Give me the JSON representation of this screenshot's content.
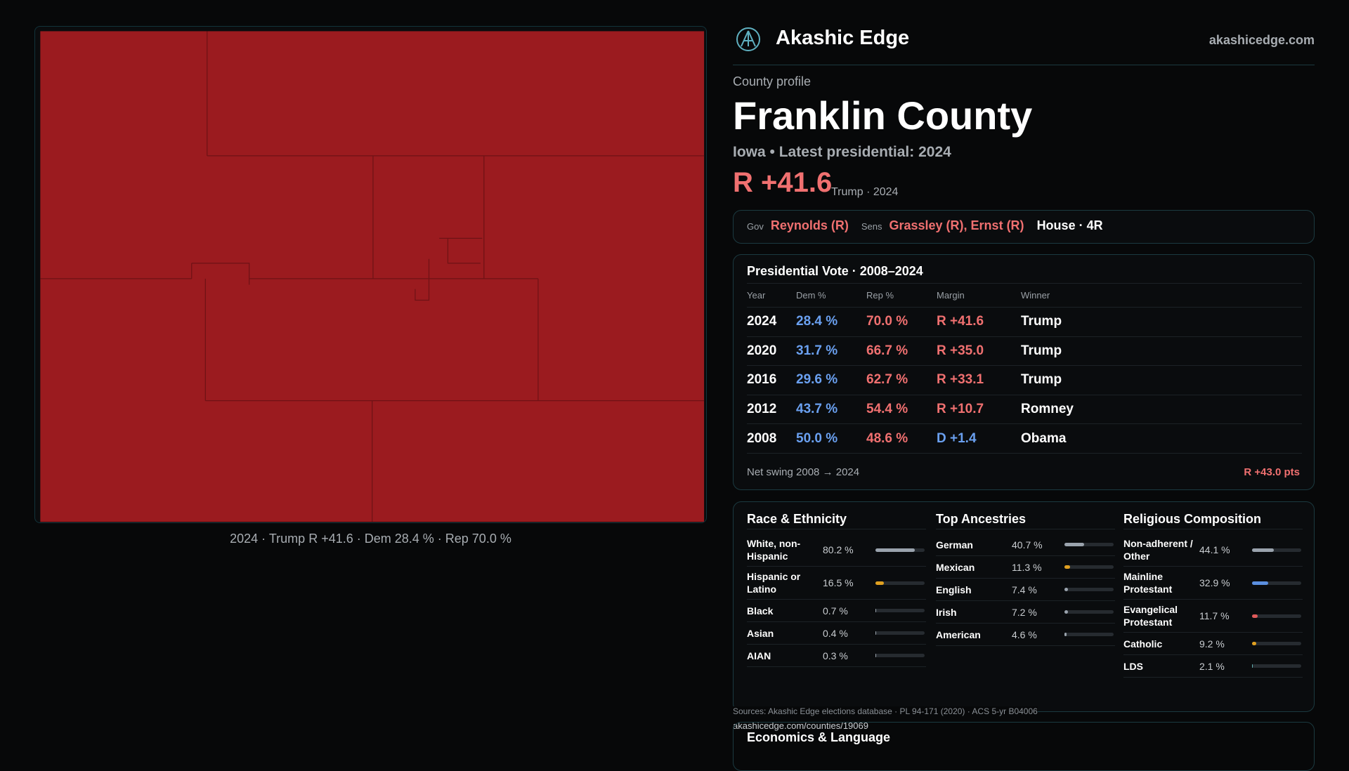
{
  "header": {
    "brand": "Akashic Edge",
    "site": "akashicedge.com"
  },
  "profile": {
    "kicker": "County profile",
    "title": "Franklin County",
    "subtitle": "Iowa • Latest presidential: 2024",
    "margin": "R +41.6",
    "margin_note": "Trump · 2024"
  },
  "officials": [
    {
      "role": "Gov",
      "names": "Reynolds (R)"
    },
    {
      "role": "Sens",
      "names": "Grassley (R), Ernst (R)"
    },
    {
      "role": "",
      "names": "House · 4R"
    }
  ],
  "map": {
    "caption": "2024 · Trump R +41.6 · Dem 28.4 % · Rep 70.0 %"
  },
  "presidential": {
    "title": "Presidential Vote · 2008–2024",
    "columns": [
      "Year",
      "Dem %",
      "Rep %",
      "Margin",
      "Winner"
    ],
    "rows": [
      [
        "2024",
        "28.4 %",
        "70.0 %",
        "R +41.6",
        "Trump"
      ],
      [
        "2020",
        "31.7 %",
        "66.7 %",
        "R +35.0",
        "Trump"
      ],
      [
        "2016",
        "29.6 %",
        "62.7 %",
        "R +33.1",
        "Trump"
      ],
      [
        "2012",
        "43.7 %",
        "54.4 %",
        "R +10.7",
        "Romney"
      ],
      [
        "2008",
        "50.0 %",
        "48.6 %",
        "D +1.4",
        "Obama"
      ]
    ],
    "swing_label": "Net swing 2008 → 2024",
    "swing_value": "R +43.0 pts"
  },
  "panels": [
    {
      "title": "Race & Ethnicity",
      "items": [
        {
          "name": "White, non-Hispanic",
          "value": 80.2,
          "label": "80.2 %",
          "color": "#9aa3ad"
        },
        {
          "name": "Hispanic or Latino",
          "value": 16.5,
          "label": "16.5 %",
          "color": "#e0a020"
        },
        {
          "name": "Black",
          "value": 0.7,
          "label": "0.7 %",
          "color": "#9aa3ad"
        },
        {
          "name": "Asian",
          "value": 0.4,
          "label": "0.4 %",
          "color": "#9aa3ad"
        },
        {
          "name": "AIAN",
          "value": 0.3,
          "label": "0.3 %",
          "color": "#9aa3ad"
        }
      ]
    },
    {
      "title": "Top Ancestries",
      "items": [
        {
          "name": "German",
          "value": 40.7,
          "label": "40.7 %",
          "color": "#9aa3ad"
        },
        {
          "name": "Mexican",
          "value": 11.3,
          "label": "11.3 %",
          "color": "#e0a020"
        },
        {
          "name": "English",
          "value": 7.4,
          "label": "7.4 %",
          "color": "#9aa3ad"
        },
        {
          "name": "Irish",
          "value": 7.2,
          "label": "7.2 %",
          "color": "#9aa3ad"
        },
        {
          "name": "American",
          "value": 4.6,
          "label": "4.6 %",
          "color": "#9aa3ad"
        }
      ]
    },
    {
      "title": "Religious Composition",
      "items": [
        {
          "name": "Non-adherent / Other",
          "value": 44.1,
          "label": "44.1 %",
          "color": "#9aa3ad"
        },
        {
          "name": "Mainline Protestant",
          "value": 32.9,
          "label": "32.9 %",
          "color": "#5b8fe0"
        },
        {
          "name": "Evangelical Protestant",
          "value": 11.7,
          "label": "11.7 %",
          "color": "#e05a5a"
        },
        {
          "name": "Catholic",
          "value": 9.2,
          "label": "9.2 %",
          "color": "#e0a020"
        },
        {
          "name": "LDS",
          "value": 2.1,
          "label": "2.1 %",
          "color": "#5fb0b0"
        }
      ]
    }
  ],
  "sources": {
    "line": "Sources: Akashic Edge elections database · PL 94-171 (2020) · ACS 5-yr B04006",
    "url": "akashicedge.com/counties/19069"
  },
  "economics": {
    "title": "Economics & Language"
  }
}
